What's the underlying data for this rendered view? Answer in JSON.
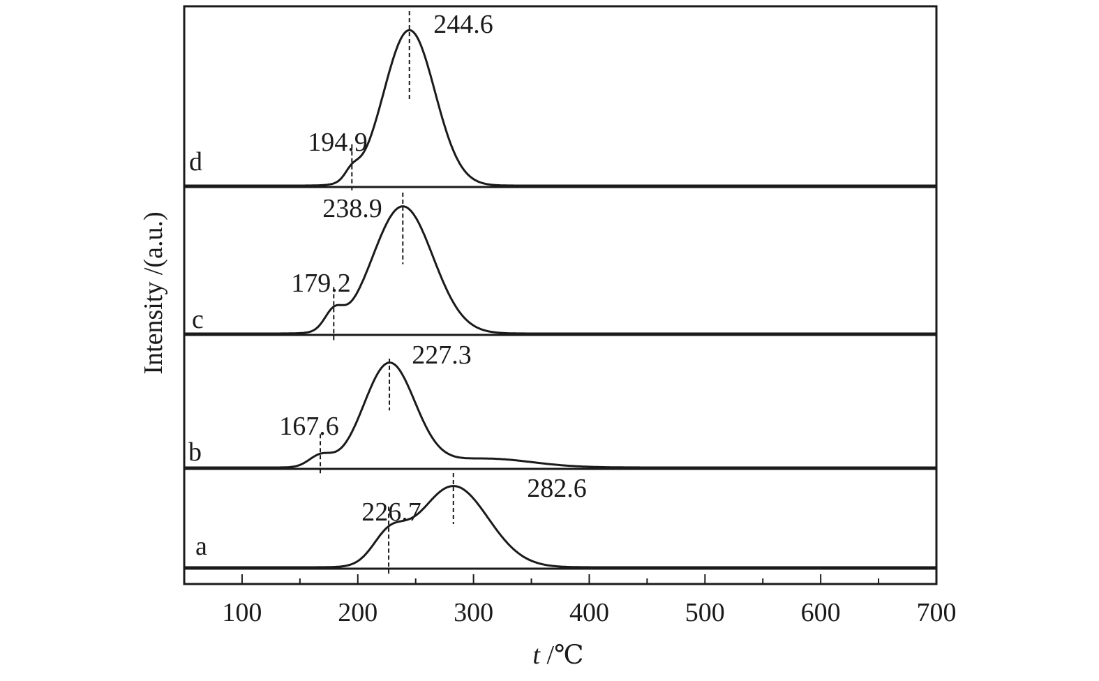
{
  "chart_data": {
    "type": "line",
    "title": "",
    "xlabel_italic": "t",
    "xlabel_unit": " /℃",
    "ylabel": "Intensity /(a.u.)",
    "xlim": [
      50,
      700
    ],
    "xticks": [
      100,
      200,
      300,
      400,
      500,
      600,
      700
    ],
    "tick_labels": [
      "100",
      "200",
      "300",
      "400",
      "500",
      "600",
      "700"
    ],
    "grid": false,
    "series": [
      {
        "name": "a",
        "peaks": [
          {
            "label": "226.7",
            "x": 226.7,
            "height": 0.27,
            "width": 14
          },
          {
            "label": "282.6",
            "x": 282.6,
            "height": 0.82,
            "width": 30
          }
        ]
      },
      {
        "name": "b",
        "peaks": [
          {
            "label": "167.6",
            "x": 167.6,
            "height": 0.1,
            "width": 10
          },
          {
            "label": "227.3",
            "x": 227.3,
            "height": 0.93,
            "width": 22
          },
          {
            "label": "",
            "x": 310,
            "height": 0.08,
            "width": 40
          }
        ]
      },
      {
        "name": "c",
        "peaks": [
          {
            "label": "179.2",
            "x": 179.2,
            "height": 0.13,
            "width": 8
          },
          {
            "label": "238.9",
            "x": 238.9,
            "height": 0.93,
            "width": 26
          }
        ]
      },
      {
        "name": "d",
        "peaks": [
          {
            "label": "194.9",
            "x": 194.9,
            "height": 0.06,
            "width": 6
          },
          {
            "label": "244.6",
            "x": 244.6,
            "height": 0.96,
            "width": 22
          }
        ]
      }
    ]
  }
}
